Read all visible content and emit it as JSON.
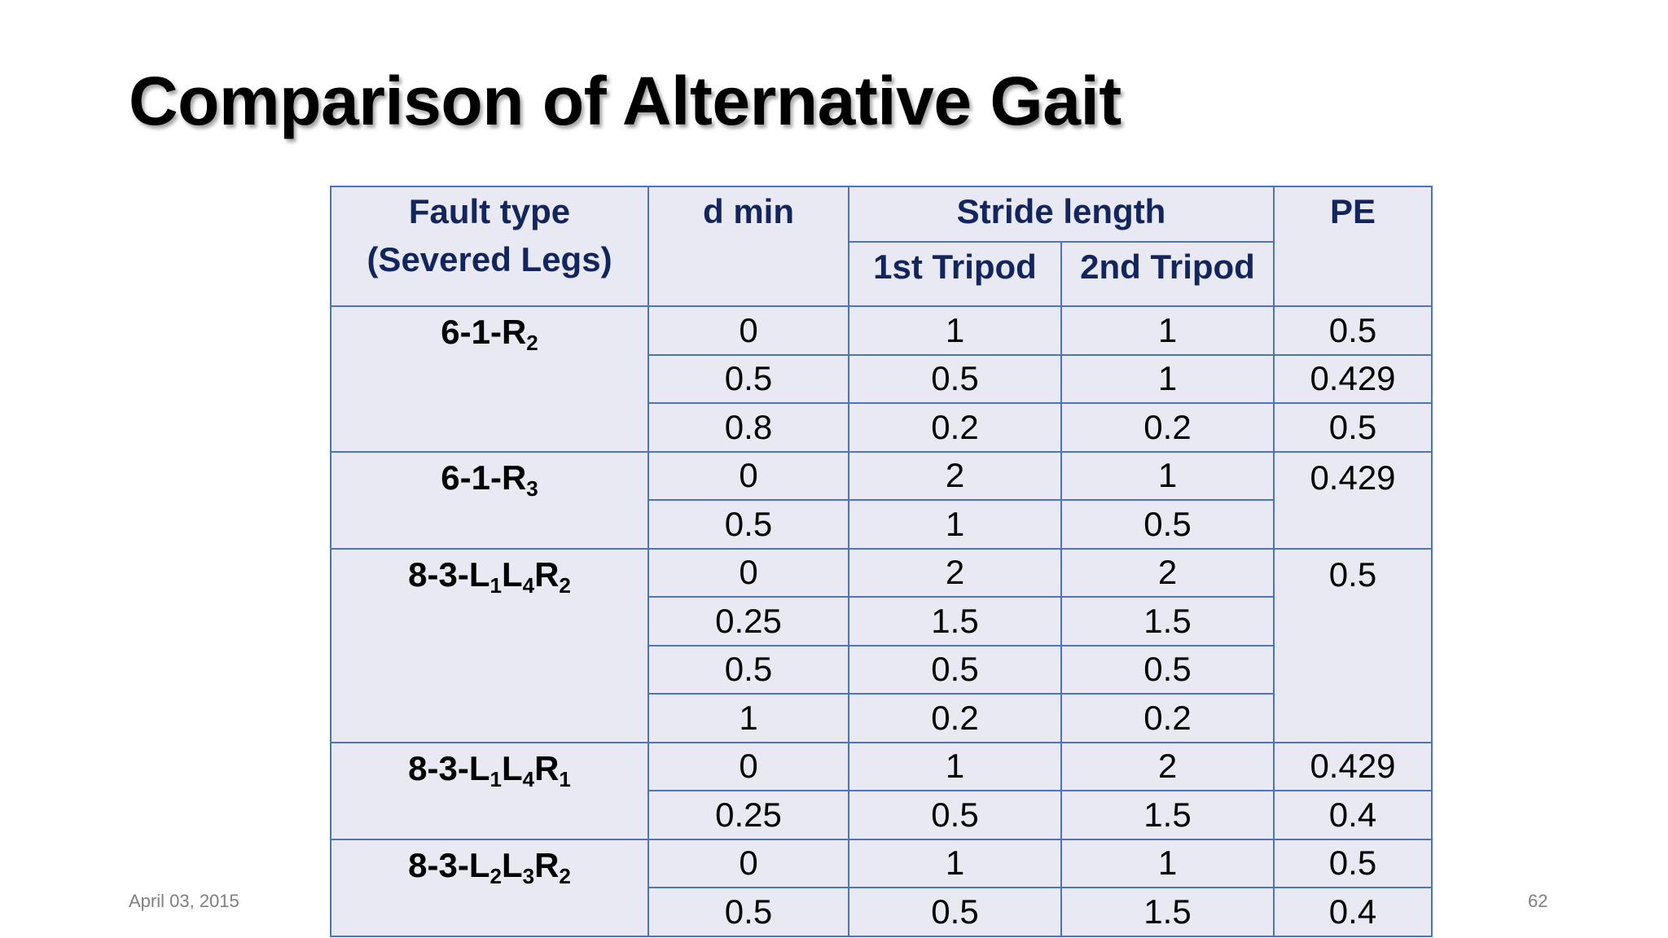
{
  "slide": {
    "title": "Comparison of Alternative Gait",
    "date": "April 03, 2015",
    "page_number": "62"
  },
  "table": {
    "header": {
      "fault_type_line1": "Fault type",
      "fault_type_line2": "(Severed Legs)",
      "dmin": "d min",
      "stride": "Stride length",
      "tripod1": "1st Tripod",
      "tripod2": "2nd Tripod",
      "pe": "PE"
    },
    "groups": [
      {
        "fault": {
          "base": "6-1-R",
          "parts": [
            {
              "letter": "R",
              "sub": "2"
            }
          ],
          "text": "6-1-R2"
        },
        "rows": [
          {
            "dmin": "0",
            "tripod1": "1",
            "tripod2": "1",
            "pe": "0.5"
          },
          {
            "dmin": "0.5",
            "tripod1": "0.5",
            "tripod2": "1",
            "pe": "0.429"
          },
          {
            "dmin": "0.8",
            "tripod1": "0.2",
            "tripod2": "0.2",
            "pe": "0.5"
          }
        ]
      },
      {
        "fault": {
          "text": "6-1-R3"
        },
        "pe": "0.429",
        "rows": [
          {
            "dmin": "0",
            "tripod1": "2",
            "tripod2": "1"
          },
          {
            "dmin": "0.5",
            "tripod1": "1",
            "tripod2": "0.5"
          }
        ]
      },
      {
        "fault": {
          "text": "8-3-L1L4R2"
        },
        "pe": "0.5",
        "rows": [
          {
            "dmin": "0",
            "tripod1": "2",
            "tripod2": "2"
          },
          {
            "dmin": "0.25",
            "tripod1": "1.5",
            "tripod2": "1.5"
          },
          {
            "dmin": "0.5",
            "tripod1": "0.5",
            "tripod2": "0.5"
          },
          {
            "dmin": "1",
            "tripod1": "0.2",
            "tripod2": "0.2"
          }
        ]
      },
      {
        "fault": {
          "text": "8-3-L1L4R1"
        },
        "rows": [
          {
            "dmin": "0",
            "tripod1": "1",
            "tripod2": "2",
            "pe": "0.429"
          },
          {
            "dmin": "0.25",
            "tripod1": "0.5",
            "tripod2": "1.5",
            "pe": "0.4"
          }
        ]
      },
      {
        "fault": {
          "text": "8-3-L2L3R2"
        },
        "rows": [
          {
            "dmin": "0",
            "tripod1": "1",
            "tripod2": "1",
            "pe": "0.5"
          },
          {
            "dmin": "0.5",
            "tripod1": "0.5",
            "tripod2": "1.5",
            "pe": "0.4"
          }
        ]
      }
    ],
    "fault_labels": {
      "g0": {
        "prefix": "6-1-",
        "a": "R",
        "a_sub": "2"
      },
      "g1": {
        "prefix": "6-1-",
        "a": "R",
        "a_sub": "3"
      },
      "g2": {
        "prefix": "8-3-",
        "a": "L",
        "a_sub": "1",
        "b": "L",
        "b_sub": "4",
        "c": "R",
        "c_sub": "2"
      },
      "g3": {
        "prefix": "8-3-",
        "a": "L",
        "a_sub": "1",
        "b": "L",
        "b_sub": "4",
        "c": "R",
        "c_sub": "1"
      },
      "g4": {
        "prefix": "8-3-",
        "a": "L",
        "a_sub": "2",
        "b": "L",
        "b_sub": "3",
        "c": "R",
        "c_sub": "2"
      }
    }
  }
}
